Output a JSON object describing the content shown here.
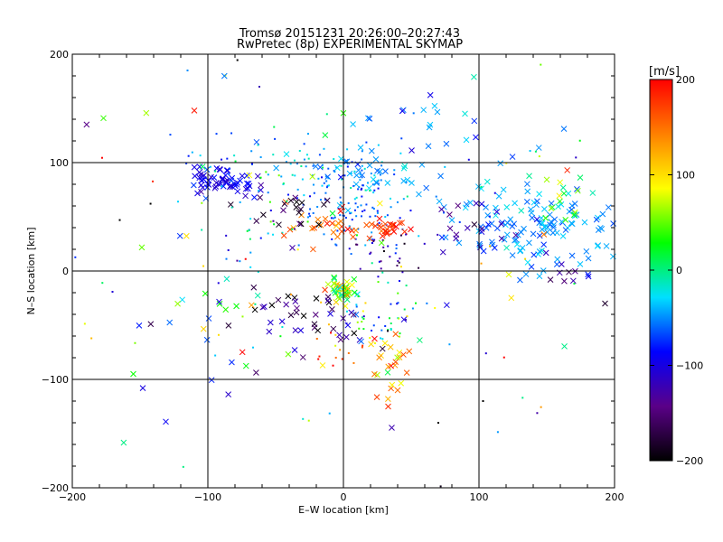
{
  "chart_data": {
    "type": "scatter",
    "title": "Tromsø 20151231 20:26:00–20:27:43",
    "subtitle": "RwPretec (8p) EXPERIMENTAL SKYMAP",
    "xlabel": "E–W location [km]",
    "ylabel": "N–S location [km]",
    "xlim": [
      -200,
      200
    ],
    "ylim": [
      -200,
      200
    ],
    "xticks": [
      "−200",
      "−100",
      "0",
      "100",
      "200"
    ],
    "yticks": [
      "−200",
      "−100",
      "0",
      "100",
      "200"
    ],
    "grid": true,
    "colorbar": {
      "unit": "[m/s]",
      "range": [
        -200,
        200
      ],
      "ticks": [
        "200",
        "100",
        "0",
        "−100",
        "−200"
      ],
      "colors": [
        "#000000",
        "#5a0088",
        "#0000ff",
        "#00e0ff",
        "#00ff00",
        "#ffff00",
        "#ff8000",
        "#ff0000"
      ]
    },
    "clusters": [
      {
        "cx": -95,
        "cy": 85,
        "sx": 10,
        "sy": 7,
        "n": 45,
        "v": -100,
        "vsd": 15,
        "mark": "x"
      },
      {
        "cx": -75,
        "cy": 80,
        "sx": 8,
        "sy": 7,
        "n": 20,
        "v": -95,
        "vsd": 15,
        "mark": "x"
      },
      {
        "cx": -80,
        "cy": 100,
        "sx": 25,
        "sy": 15,
        "n": 30,
        "v": -60,
        "vsd": 30,
        "mark": "dot"
      },
      {
        "cx": 10,
        "cy": 60,
        "sx": 25,
        "sy": 18,
        "n": 110,
        "v": -55,
        "vsd": 20,
        "mark": "dot"
      },
      {
        "cx": 0,
        "cy": 90,
        "sx": 25,
        "sy": 15,
        "n": 60,
        "v": -40,
        "vsd": 25,
        "mark": "dot"
      },
      {
        "cx": -10,
        "cy": 45,
        "sx": 18,
        "sy": 8,
        "n": 30,
        "v": 170,
        "vsd": 25,
        "mark": "x"
      },
      {
        "cx": 32,
        "cy": 38,
        "sx": 6,
        "sy": 6,
        "n": 20,
        "v": 185,
        "vsd": 15,
        "mark": "x"
      },
      {
        "cx": -35,
        "cy": 55,
        "sx": 15,
        "sy": 10,
        "n": 20,
        "v": -180,
        "vsd": 20,
        "mark": "x"
      },
      {
        "cx": 20,
        "cy": 90,
        "sx": 30,
        "sy": 12,
        "n": 40,
        "v": -50,
        "vsd": 15,
        "mark": "x"
      },
      {
        "cx": 140,
        "cy": 40,
        "sx": 30,
        "sy": 18,
        "n": 130,
        "v": -45,
        "vsd": 15,
        "mark": "x"
      },
      {
        "cx": 160,
        "cy": 70,
        "sx": 12,
        "sy": 10,
        "n": 15,
        "v": 40,
        "vsd": 30,
        "mark": "x"
      },
      {
        "cx": 100,
        "cy": 45,
        "sx": 15,
        "sy": 15,
        "n": 20,
        "v": -120,
        "vsd": 30,
        "mark": "x"
      },
      {
        "cx": 170,
        "cy": -5,
        "sx": 15,
        "sy": 8,
        "n": 12,
        "v": -120,
        "vsd": 40,
        "mark": "x"
      },
      {
        "cx": 0,
        "cy": -18,
        "sx": 5,
        "sy": 6,
        "n": 45,
        "v": 60,
        "vsd": 45,
        "mark": "x"
      },
      {
        "cx": -20,
        "cy": -45,
        "sx": 25,
        "sy": 15,
        "n": 40,
        "v": -160,
        "vsd": 40,
        "mark": "x"
      },
      {
        "cx": 30,
        "cy": -50,
        "sx": 15,
        "sy": 15,
        "n": 40,
        "v": -20,
        "vsd": 60,
        "mark": "dot"
      },
      {
        "cx": 35,
        "cy": -85,
        "sx": 10,
        "sy": 15,
        "n": 25,
        "v": 140,
        "vsd": 50,
        "mark": "x"
      },
      {
        "cx": -5,
        "cy": -75,
        "sx": 10,
        "sy": 8,
        "n": 15,
        "v": 160,
        "vsd": 40,
        "mark": "dot"
      },
      {
        "cx": 30,
        "cy": 15,
        "sx": 15,
        "sy": 12,
        "n": 30,
        "v": -140,
        "vsd": 40,
        "mark": "dot"
      },
      {
        "cx": -60,
        "cy": 40,
        "sx": 20,
        "sy": 15,
        "n": 20,
        "v": -10,
        "vsd": 60,
        "mark": "dot"
      },
      {
        "cx": -100,
        "cy": -60,
        "sx": 20,
        "sy": 30,
        "n": 15,
        "v": 0,
        "vsd": 90,
        "mark": "x"
      },
      {
        "cx": 60,
        "cy": 130,
        "sx": 40,
        "sy": 20,
        "n": 20,
        "v": -50,
        "vsd": 20,
        "mark": "x"
      },
      {
        "cx": 0,
        "cy": 0,
        "sx": 110,
        "sy": 100,
        "n": 90,
        "v": 0,
        "vsd": 100,
        "mark": "dot"
      },
      {
        "cx": 0,
        "cy": 0,
        "sx": 100,
        "sy": 90,
        "n": 50,
        "v": 0,
        "vsd": 100,
        "mark": "x"
      }
    ],
    "points": [
      {
        "x": -177,
        "y": 141,
        "v": 40,
        "mark": "x"
      },
      {
        "x": -110,
        "y": 148,
        "v": 190,
        "mark": "x"
      },
      {
        "x": -155,
        "y": -95,
        "v": 30,
        "mark": "x"
      },
      {
        "x": -148,
        "y": -108,
        "v": -100,
        "mark": "x"
      },
      {
        "x": -131,
        "y": -139,
        "v": -90,
        "mark": "x"
      },
      {
        "x": -115,
        "y": 185,
        "v": -50,
        "mark": "dot"
      },
      {
        "x": -62,
        "y": 170,
        "v": -120,
        "mark": "dot"
      },
      {
        "x": 70,
        "y": -140,
        "v": -200,
        "mark": "dot"
      },
      {
        "x": 103,
        "y": -120,
        "v": -200,
        "mark": "dot"
      },
      {
        "x": 193,
        "y": -30,
        "v": -180,
        "mark": "x"
      },
      {
        "x": -165,
        "y": 47,
        "v": -200,
        "mark": "dot"
      },
      {
        "x": 33,
        "y": -125,
        "v": 180,
        "mark": "x"
      },
      {
        "x": 40,
        "y": -110,
        "v": 150,
        "mark": "x"
      }
    ]
  }
}
